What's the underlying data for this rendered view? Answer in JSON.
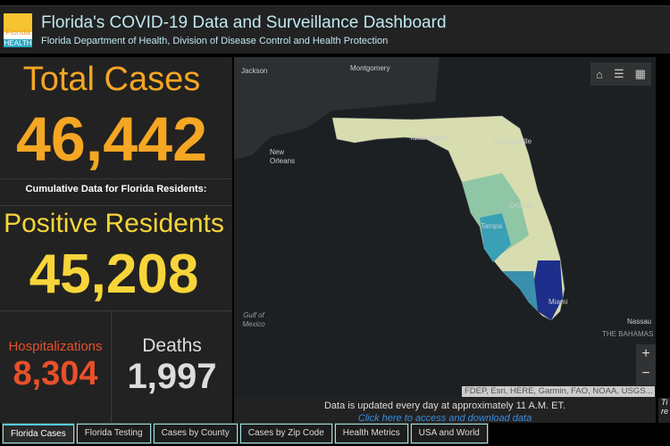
{
  "header": {
    "title": "Florida's COVID-19 Data and Surveillance Dashboard",
    "subtitle": "Florida Department of Health, Division of Disease Control and Health Protection",
    "logo_text": [
      "Florida",
      "HEALTH"
    ]
  },
  "stats": {
    "total_cases_label": "Total Cases",
    "total_cases": "46,442",
    "cumulative_label": "Cumulative Data for Florida Residents:",
    "positive_label": "Positive Residents",
    "positive": "45,208",
    "hosp_label": "Hospitalizations",
    "hosp": "8,304",
    "deaths_label": "Deaths",
    "deaths": "1,997"
  },
  "map": {
    "labels": {
      "jackson": "Jackson",
      "montgomery": "Montgomery",
      "new_orleans": "New Orleans",
      "tallahassee": "Tallahassee",
      "jacksonville": "Jacksonville",
      "orlando": "Orlando",
      "tampa": "Tampa",
      "miami": "Miami",
      "gulf": "Gulf of Mexico",
      "nassau": "Nassau",
      "bahamas": "THE BAHAMAS"
    },
    "attribution": "FDEP, Esri, HERE, Garmin, FAO, NOAA, USGS...",
    "zoom_in": "+",
    "zoom_out": "−"
  },
  "footer": {
    "update": "Data is updated every day at approximately 11 A.M. ET.",
    "download": "Click here to access and download data",
    "right_text": "Ti re"
  },
  "tabs": [
    "Florida Cases",
    "Florida Testing",
    "Cases by County",
    "Cases by Zip Code",
    "Health Metrics",
    "USA and World"
  ]
}
